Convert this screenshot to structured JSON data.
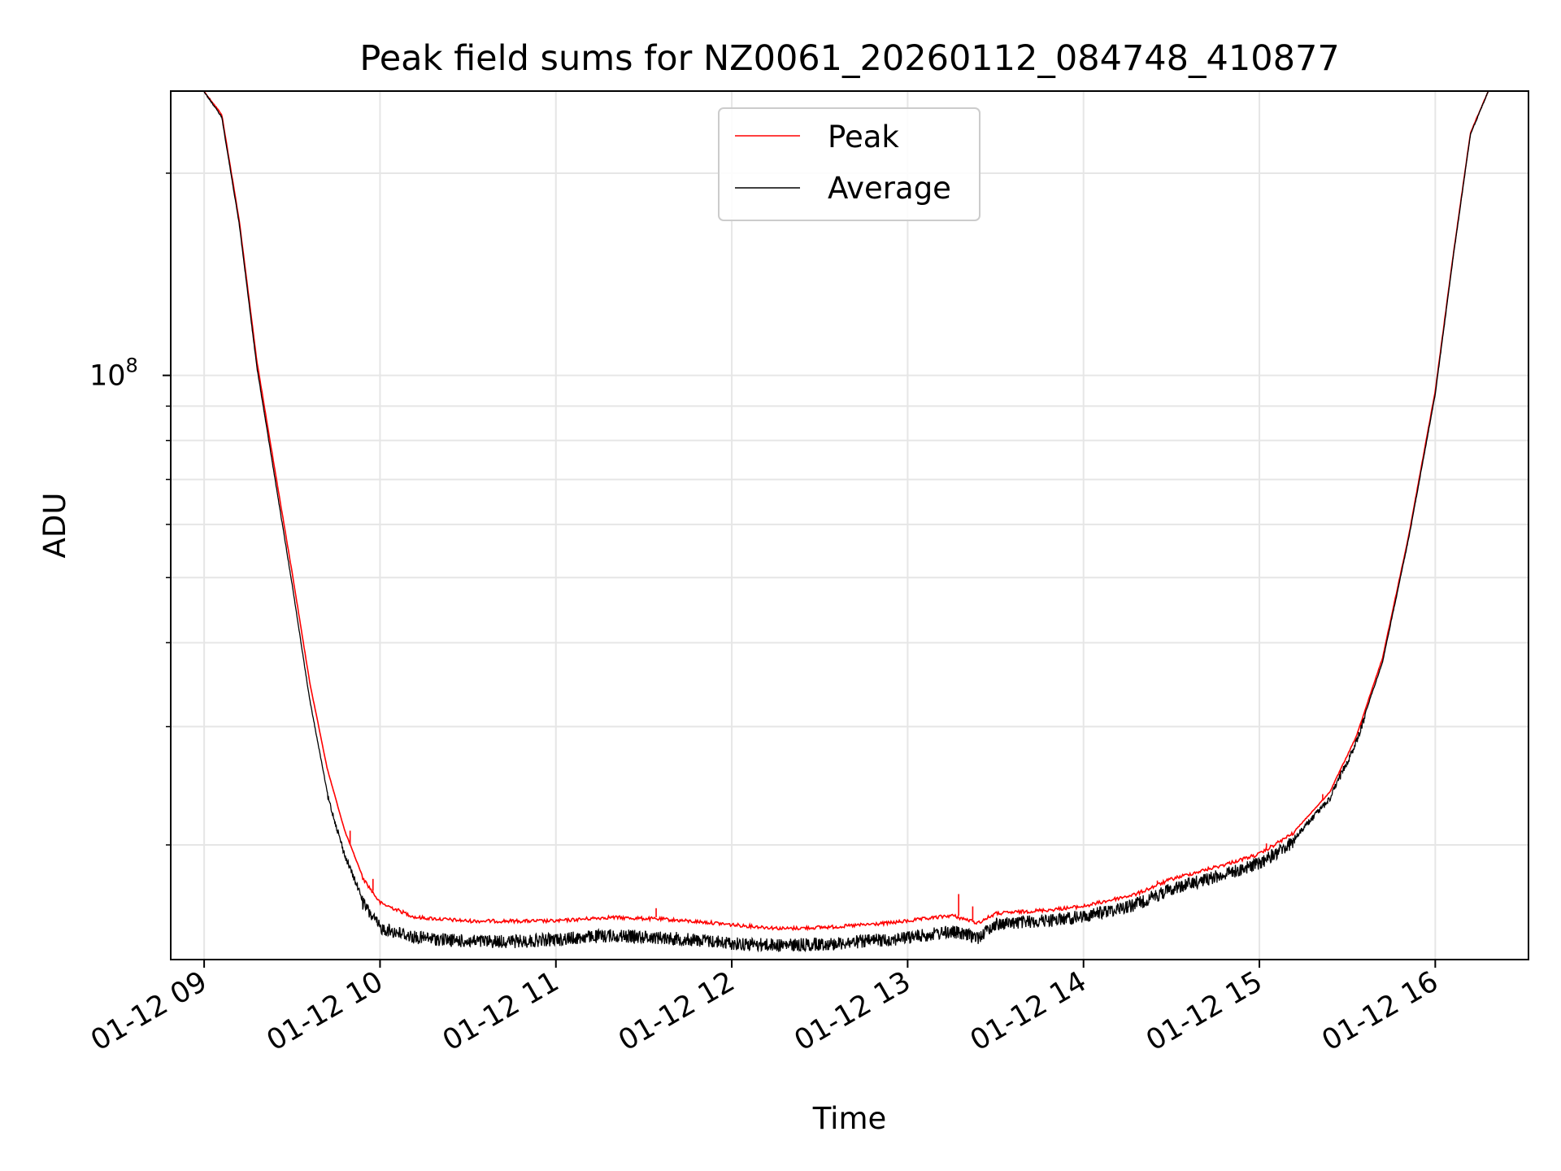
{
  "chart_data": {
    "type": "line",
    "title": "Peak field sums for NZ0061_20260112_084748_410877",
    "xlabel": "Time",
    "ylabel": "ADU",
    "yscale": "log",
    "ylim": [
      13500000,
      265000000
    ],
    "xlim_hours": [
      8.81,
      16.53
    ],
    "x_tick_labels": [
      "01-12 09",
      "01-12 10",
      "01-12 11",
      "01-12 12",
      "01-12 13",
      "01-12 14",
      "01-12 15",
      "01-12 16"
    ],
    "x_tick_hours": [
      9,
      10,
      11,
      12,
      13,
      14,
      15,
      16
    ],
    "y_major_ticks": [
      100000000
    ],
    "y_major_tick_label": {
      "base": "10",
      "exponent": "8"
    },
    "y_minor_ticks": [
      20000000,
      30000000,
      40000000,
      50000000,
      60000000,
      70000000,
      80000000,
      90000000,
      200000000
    ],
    "grid": true,
    "legend": {
      "position": "upper center",
      "entries": [
        "Peak",
        "Average"
      ]
    },
    "series": [
      {
        "name": "Peak",
        "color": "#ff0000",
        "x_hours": [
          9.0,
          9.1,
          9.2,
          9.3,
          9.4,
          9.5,
          9.6,
          9.7,
          9.8,
          9.9,
          10.0,
          10.2,
          10.5,
          10.8,
          11.0,
          11.3,
          11.6,
          11.9,
          12.0,
          12.3,
          12.6,
          12.9,
          13.0,
          13.25,
          13.4,
          13.5,
          13.8,
          14.0,
          14.3,
          14.5,
          14.8,
          15.0,
          15.2,
          15.4,
          15.55,
          15.7,
          15.85,
          16.0,
          16.1,
          16.2,
          16.3
        ],
        "values": [
          265000000,
          245000000,
          170000000,
          105000000,
          73000000,
          51000000,
          35000000,
          26000000,
          21000000,
          18000000,
          16500000,
          15700000,
          15500000,
          15500000,
          15500000,
          15700000,
          15600000,
          15400000,
          15300000,
          15100000,
          15200000,
          15400000,
          15500000,
          15800000,
          15400000,
          15900000,
          16100000,
          16300000,
          17000000,
          17900000,
          18800000,
          19500000,
          21000000,
          24000000,
          29000000,
          38000000,
          58000000,
          95000000,
          150000000,
          230000000,
          265000000
        ],
        "spikes": [
          [
            9.83,
            21000000
          ],
          [
            9.96,
            17800000
          ],
          [
            11.57,
            16100000
          ],
          [
            13.29,
            16900000
          ],
          [
            13.37,
            16200000
          ],
          [
            14.42,
            17700000
          ],
          [
            15.04,
            20100000
          ],
          [
            15.36,
            23800000
          ],
          [
            15.46,
            25100000
          ],
          [
            15.58,
            29800000
          ]
        ]
      },
      {
        "name": "Average",
        "color": "#000000",
        "x_hours": [
          9.0,
          9.1,
          9.2,
          9.3,
          9.4,
          9.5,
          9.6,
          9.7,
          9.8,
          9.9,
          10.0,
          10.2,
          10.5,
          10.8,
          11.0,
          11.3,
          11.6,
          11.9,
          12.0,
          12.3,
          12.6,
          12.9,
          13.0,
          13.25,
          13.4,
          13.5,
          13.8,
          14.0,
          14.3,
          14.5,
          14.8,
          15.0,
          15.2,
          15.4,
          15.55,
          15.7,
          15.85,
          16.0,
          16.1,
          16.2,
          16.3
        ],
        "values": [
          265000000,
          243000000,
          168000000,
          103000000,
          71000000,
          49000000,
          33000000,
          24000000,
          19500000,
          16800000,
          15400000,
          14900000,
          14700000,
          14700000,
          14800000,
          15000000,
          14900000,
          14700000,
          14600000,
          14500000,
          14600000,
          14800000,
          14900000,
          15200000,
          14900000,
          15600000,
          15800000,
          16000000,
          16700000,
          17600000,
          18500000,
          19200000,
          20700000,
          23700000,
          28700000,
          37500000,
          57500000,
          94000000,
          149000000,
          229000000,
          265000000
        ],
        "noise_fraction": 0.045
      }
    ]
  }
}
